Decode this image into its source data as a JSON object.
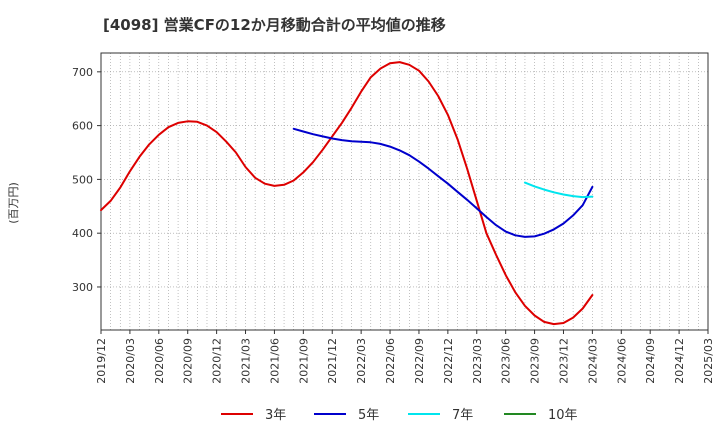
{
  "chart_data": {
    "type": "line",
    "title": "[4098]  営業CFの12か月移動合計の平均値の推移",
    "ylabel": "(百万円)",
    "xlabel": "",
    "ylim": [
      220,
      735
    ],
    "yticks": [
      300,
      400,
      500,
      600,
      700
    ],
    "x_ticks": [
      "2019/12",
      "2020/03",
      "2020/06",
      "2020/09",
      "2020/12",
      "2021/03",
      "2021/06",
      "2021/09",
      "2021/12",
      "2022/03",
      "2022/06",
      "2022/09",
      "2022/12",
      "2023/03",
      "2023/06",
      "2023/09",
      "2023/12",
      "2024/03",
      "2024/06",
      "2024/09",
      "2024/12",
      "2025/03"
    ],
    "grid": true,
    "legend_position": "bottom",
    "series": [
      {
        "name": "3年",
        "color": "#dd0000",
        "x": [
          "2019/12",
          "2020/01",
          "2020/02",
          "2020/03",
          "2020/04",
          "2020/05",
          "2020/06",
          "2020/07",
          "2020/08",
          "2020/09",
          "2020/10",
          "2020/11",
          "2020/12",
          "2021/01",
          "2021/02",
          "2021/03",
          "2021/04",
          "2021/05",
          "2021/06",
          "2021/07",
          "2021/08",
          "2021/09",
          "2021/10",
          "2021/11",
          "2021/12",
          "2022/01",
          "2022/02",
          "2022/03",
          "2022/04",
          "2022/05",
          "2022/06",
          "2022/07",
          "2022/08",
          "2022/09",
          "2022/10",
          "2022/11",
          "2022/12",
          "2023/01",
          "2023/02",
          "2023/03",
          "2023/04",
          "2023/05",
          "2023/06",
          "2023/07",
          "2023/08",
          "2023/09",
          "2023/10",
          "2023/11",
          "2023/12",
          "2024/01",
          "2024/02",
          "2024/03"
        ],
        "values": [
          443,
          460,
          485,
          515,
          542,
          565,
          583,
          597,
          605,
          608,
          607,
          600,
          588,
          570,
          550,
          523,
          503,
          492,
          488,
          490,
          498,
          513,
          532,
          555,
          580,
          605,
          633,
          663,
          690,
          706,
          716,
          718,
          713,
          702,
          682,
          655,
          620,
          575,
          520,
          460,
          400,
          360,
          322,
          290,
          265,
          247,
          235,
          231,
          233,
          243,
          260,
          285
        ]
      },
      {
        "name": "5年",
        "color": "#0000cc",
        "x": [
          "2021/08",
          "2021/09",
          "2021/10",
          "2021/11",
          "2021/12",
          "2022/01",
          "2022/02",
          "2022/03",
          "2022/04",
          "2022/05",
          "2022/06",
          "2022/07",
          "2022/08",
          "2022/09",
          "2022/10",
          "2022/11",
          "2022/12",
          "2023/01",
          "2023/02",
          "2023/03",
          "2023/04",
          "2023/05",
          "2023/06",
          "2023/07",
          "2023/08",
          "2023/09",
          "2023/10",
          "2023/11",
          "2023/12",
          "2024/01",
          "2024/02",
          "2024/03"
        ],
        "values": [
          594,
          589,
          584,
          580,
          576,
          573,
          571,
          570,
          569,
          566,
          561,
          554,
          545,
          533,
          520,
          506,
          492,
          477,
          462,
          446,
          430,
          415,
          403,
          396,
          393,
          394,
          399,
          407,
          418,
          433,
          452,
          486
        ]
      },
      {
        "name": "7年",
        "color": "#00e5ee",
        "x": [
          "2023/08",
          "2023/09",
          "2023/10",
          "2023/11",
          "2023/12",
          "2024/01",
          "2024/02",
          "2024/03"
        ],
        "values": [
          494,
          487,
          481,
          476,
          472,
          469,
          467,
          468
        ]
      },
      {
        "name": "10年",
        "color": "#228822",
        "x": [],
        "values": []
      }
    ]
  }
}
